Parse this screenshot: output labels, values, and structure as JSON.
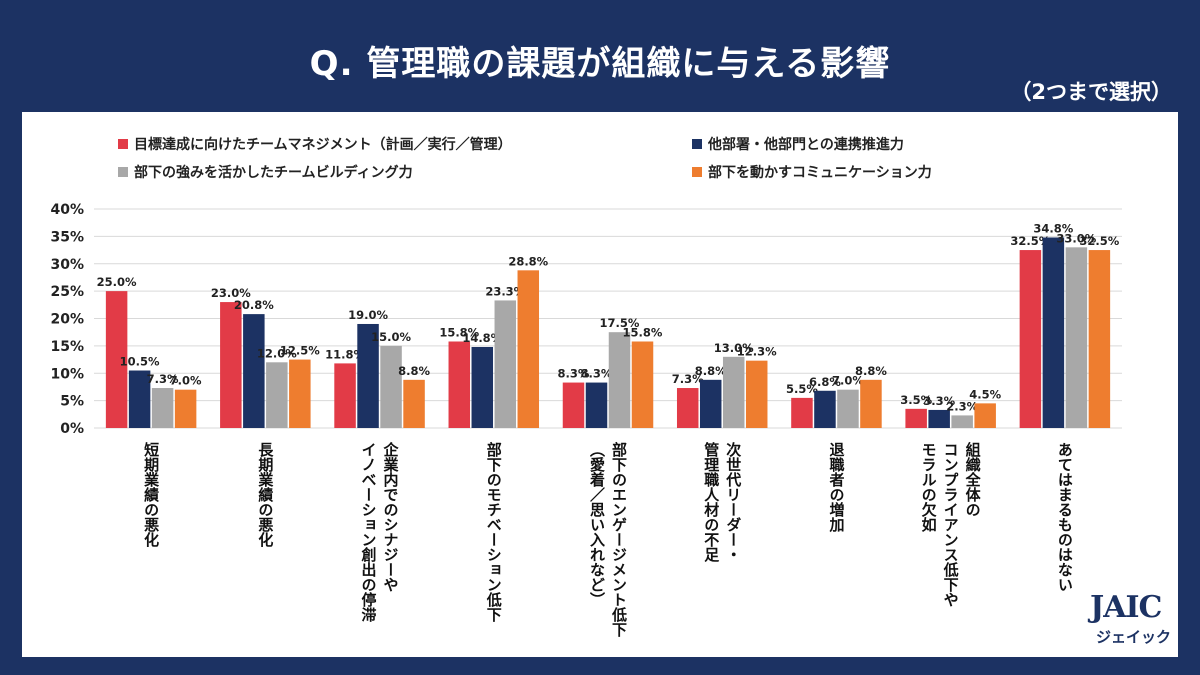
{
  "title": "Q. 管理職の課題が組織に与える影響",
  "subtitle": "（2つまで選択）",
  "logo": {
    "main": "JAIC",
    "sub": "ジェイック"
  },
  "chart_data": {
    "type": "bar",
    "ylim": [
      0,
      40
    ],
    "yticks": [
      "0%",
      "5%",
      "10%",
      "15%",
      "20%",
      "25%",
      "30%",
      "35%",
      "40%"
    ],
    "grid": true,
    "legend_position": "top-left",
    "categories": [
      [
        "短期業績の悪化"
      ],
      [
        "長期業績の悪化"
      ],
      [
        "企業内でのシナジーや",
        "イノベーション創出の停滞"
      ],
      [
        "部下のモチベーション低下"
      ],
      [
        "部下のエンゲージメント低下",
        "（愛着／思い入れなど）"
      ],
      [
        "次世代リーダー・",
        "管理職人材の不足"
      ],
      [
        "退職者の増加"
      ],
      [
        "組織全体の",
        "コンプライアンス低下や",
        "モラルの欠如"
      ],
      [
        "あてはまるものはない"
      ]
    ],
    "series": [
      {
        "name": "目標達成に向けたチームマネジメント（計画／実行／管理）",
        "color": "#e23b47",
        "values": [
          25.0,
          23.0,
          11.8,
          15.8,
          8.3,
          7.3,
          5.5,
          3.5,
          32.5
        ],
        "labels": [
          "25.0%",
          "23.0%",
          "11.8%",
          "15.8%",
          "8.3%",
          "7.3%",
          "5.5%",
          "3.5%",
          "32.5%"
        ]
      },
      {
        "name": "他部署・他部門との連携推進力",
        "color": "#1c3263",
        "values": [
          10.5,
          20.8,
          19.0,
          14.8,
          8.3,
          8.8,
          6.8,
          3.3,
          34.8
        ],
        "labels": [
          "10.5%",
          "20.8%",
          "19.0%",
          "14.8%",
          "8.3%",
          "8.8%",
          "6.8%",
          "3.3%",
          "34.8%"
        ]
      },
      {
        "name": "部下の強みを活かしたチームビルディング力",
        "color": "#a8a8a8",
        "values": [
          7.3,
          12.0,
          15.0,
          23.3,
          17.5,
          13.0,
          7.0,
          2.3,
          33.0
        ],
        "labels": [
          "7.3%",
          "12.0%",
          "15.0%",
          "23.3%",
          "17.5%",
          "13.0%",
          "7.0%",
          "2.3%",
          "33.0%"
        ]
      },
      {
        "name": "部下を動かすコミュニケーション力",
        "color": "#ee7d2f",
        "values": [
          7.0,
          12.5,
          8.8,
          28.8,
          15.8,
          12.3,
          8.8,
          4.5,
          32.5
        ],
        "labels": [
          "7.0%",
          "12.5%",
          "8.8%",
          "28.8%",
          "15.8%",
          "12.3%",
          "8.8%",
          "4.5%",
          "32.5%"
        ]
      }
    ]
  }
}
